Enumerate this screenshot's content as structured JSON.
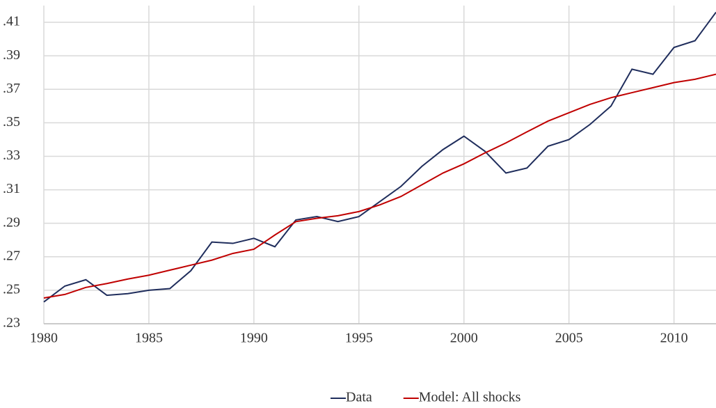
{
  "chart_data": {
    "type": "line",
    "x": [
      1980,
      1981,
      1982,
      1983,
      1984,
      1985,
      1986,
      1987,
      1988,
      1989,
      1990,
      1991,
      1992,
      1993,
      1994,
      1995,
      1996,
      1997,
      1998,
      1999,
      2000,
      2001,
      2002,
      2003,
      2004,
      2005,
      2006,
      2007,
      2008,
      2009,
      2010,
      2011,
      2012
    ],
    "series": [
      {
        "name": "Data",
        "color": "#1f2d5c",
        "values": [
          0.243,
          0.2525,
          0.2563,
          0.247,
          0.248,
          0.25,
          0.251,
          0.2617,
          0.2788,
          0.278,
          0.281,
          0.276,
          0.292,
          0.294,
          0.291,
          0.294,
          0.303,
          0.312,
          0.324,
          0.334,
          0.342,
          0.333,
          0.32,
          0.323,
          0.336,
          0.34,
          0.349,
          0.36,
          0.382,
          0.379,
          0.395,
          0.399,
          0.416
        ]
      },
      {
        "name": "Model: All shocks",
        "color": "#c00000",
        "values": [
          0.2454,
          0.2475,
          0.2517,
          0.254,
          0.2567,
          0.259,
          0.262,
          0.265,
          0.268,
          0.272,
          0.2745,
          0.283,
          0.291,
          0.293,
          0.2945,
          0.297,
          0.301,
          0.306,
          0.313,
          0.32,
          0.3255,
          0.332,
          0.338,
          0.3446,
          0.351,
          0.356,
          0.361,
          0.365,
          0.368,
          0.371,
          0.374,
          0.376,
          0.379
        ]
      }
    ],
    "xlim": [
      1980,
      2012
    ],
    "xticks": [
      1980,
      1985,
      1990,
      1995,
      2000,
      2005,
      2010
    ],
    "ylim": [
      0.23,
      0.42
    ],
    "yticks": [
      {
        "value": 0.23,
        "label": ".23"
      },
      {
        "value": 0.25,
        "label": ".25"
      },
      {
        "value": 0.27,
        "label": ".27"
      },
      {
        "value": 0.29,
        "label": ".29"
      },
      {
        "value": 0.31,
        "label": ".31"
      },
      {
        "value": 0.33,
        "label": ".33"
      },
      {
        "value": 0.35,
        "label": ".35"
      },
      {
        "value": 0.37,
        "label": ".37"
      },
      {
        "value": 0.39,
        "label": ".39"
      },
      {
        "value": 0.41,
        "label": ".41"
      }
    ],
    "grid": true,
    "legend": "bottom"
  }
}
